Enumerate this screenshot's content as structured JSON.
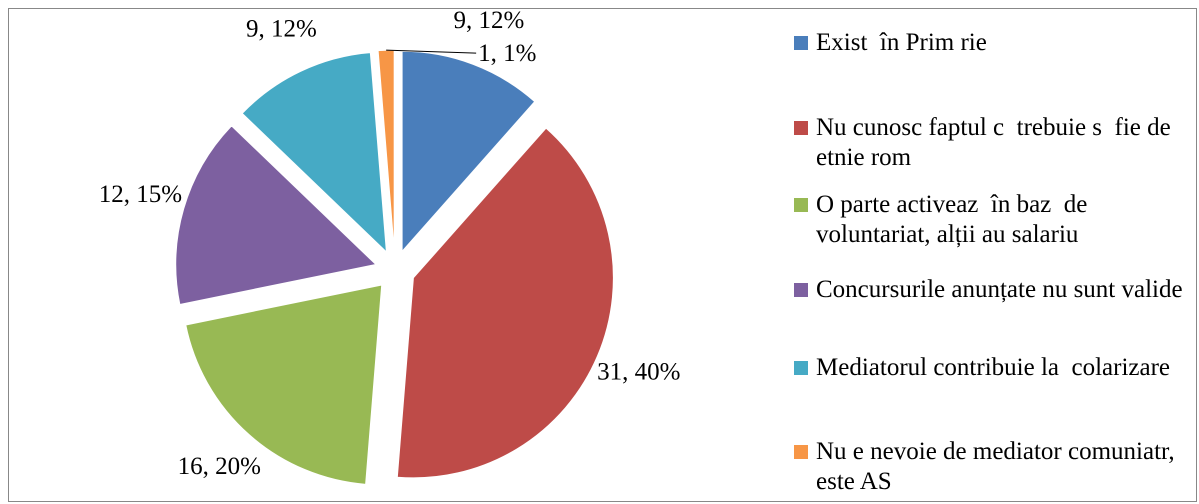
{
  "chart_data": {
    "type": "pie",
    "categories": [
      "Exist  în Prim rie",
      "Nu cunosc faptul c  trebuie s  fie de etnie rom",
      "O parte activeaz  în baz  de voluntariat, alții au salariu",
      "Concursurile anunțate nu sunt valide",
      "Mediatorul contribuie la  colarizare",
      "Nu e nevoie de mediator comuniatr, este AS"
    ],
    "values": [
      9,
      31,
      16,
      12,
      9,
      1
    ],
    "value_labels": [
      "9, 12%",
      "31, 40%",
      "16, 20%",
      "12, 15%",
      "9, 12%",
      "1, 1%"
    ],
    "colors": [
      "#4a7ebb",
      "#be4b48",
      "#98b954",
      "#7d60a0",
      "#46aac5",
      "#f79646"
    ],
    "legend": "right"
  }
}
